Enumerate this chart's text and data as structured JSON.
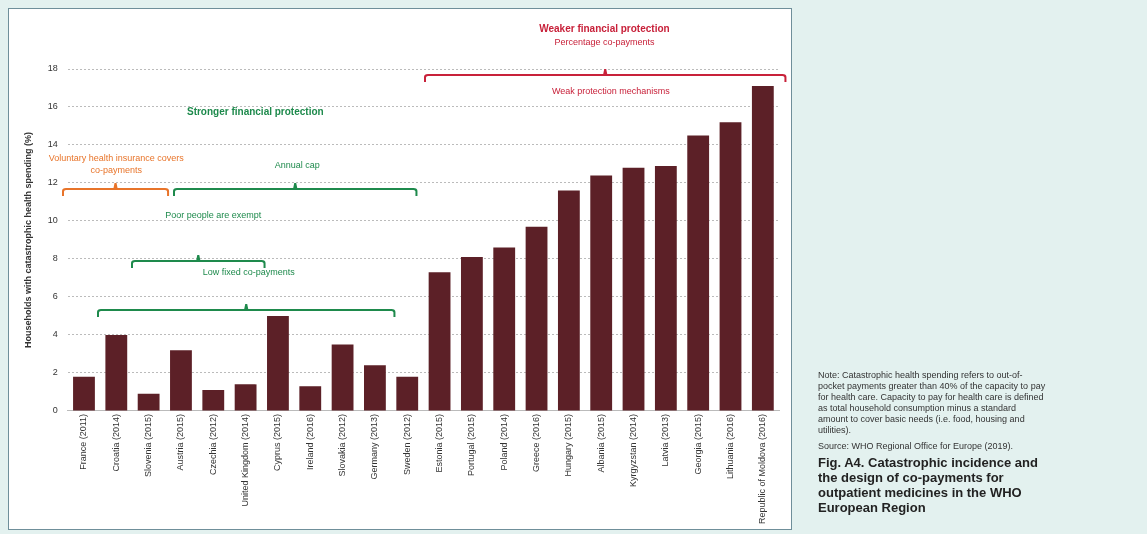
{
  "chart_data": {
    "type": "bar",
    "title": "Fig. A4. Catastrophic incidence and the design of co-payments for outpatient medicines in the WHO European Region",
    "ylabel": "Households with catastrophic health spending (%)",
    "categories": [
      "France (2011)",
      "Croatia (2014)",
      "Slovenia (2015)",
      "Austria (2015)",
      "Czechia (2012)",
      "United Kingdom (2014)",
      "Cyprus (2015)",
      "Ireland (2016)",
      "Slovakia (2012)",
      "Germany (2013)",
      "Sweden (2012)",
      "Estonia (2015)",
      "Portugal (2015)",
      "Poland (2014)",
      "Greece (2016)",
      "Hungary (2015)",
      "Albania (2015)",
      "Kyrgyzstan (2014)",
      "Latvia (2013)",
      "Georgia (2015)",
      "Lithuania (2016)",
      "Republic of Moldova (2016)"
    ],
    "values": [
      1.8,
      4.0,
      0.9,
      3.2,
      1.1,
      1.4,
      5.0,
      1.3,
      3.5,
      2.4,
      1.8,
      7.3,
      8.1,
      8.6,
      9.7,
      11.6,
      12.4,
      12.8,
      12.9,
      14.5,
      15.2,
      17.1
    ],
    "color": "#5c2027",
    "ylim": [
      0,
      18
    ],
    "yticks": [
      0,
      2,
      4,
      6,
      8,
      10,
      12,
      14,
      16,
      18
    ],
    "grid": "y",
    "annotations": [
      "Weaker financial protection",
      "Percentage co-payments",
      "Weak protection mechanisms",
      "Stronger financial protection",
      "Voluntary health insurance covers co-payments",
      "Annual cap",
      "Poor people are exempt",
      "Low fixed co-payments",
      "Note: Catastrophic health spending refers to out-of-pocket payments greater than 40% of the capacity to pay for health care. Capacity to pay for health care is defined as total household consumption minus a standard amount to cover basic needs (i.e. food, housing and utilities).",
      "Source: WHO Regional Office for Europe (2019)."
    ]
  }
}
